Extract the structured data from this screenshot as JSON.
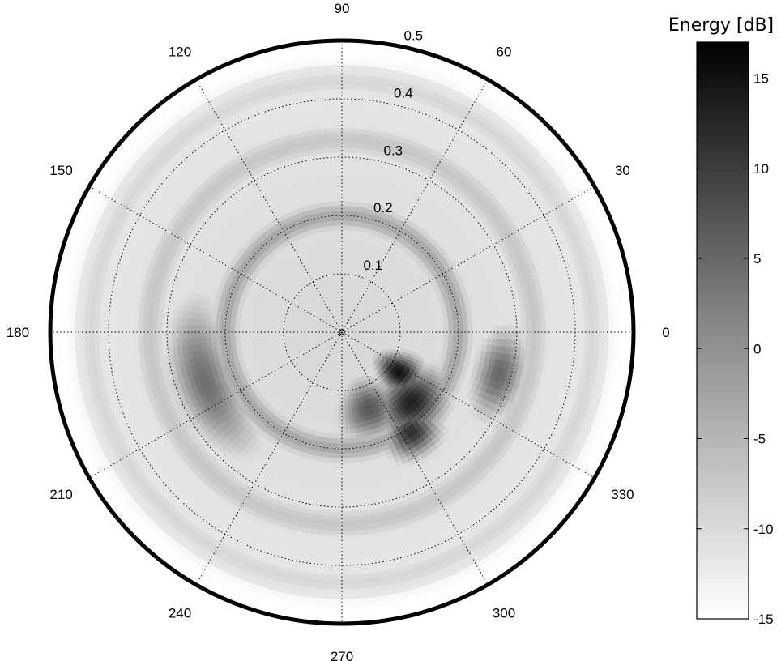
{
  "chart_data": {
    "type": "heatmap",
    "subtype": "polar",
    "title": "",
    "colormap": "gray-reversed",
    "angular_ticks_deg": [
      0,
      30,
      60,
      90,
      120,
      150,
      180,
      210,
      240,
      270,
      300,
      330
    ],
    "angular_tick_labels": [
      "0",
      "30",
      "60",
      "90",
      "120",
      "150",
      "180",
      "210",
      "240",
      "270",
      "300",
      "330"
    ],
    "radial_ticks": [
      0.1,
      0.2,
      0.3,
      0.4,
      0.5
    ],
    "radial_tick_labels": [
      "0.1",
      "0.2",
      "0.3",
      "0.4",
      "0.5"
    ],
    "rlim": [
      0,
      0.5
    ],
    "grid": "dotted",
    "colorbar": {
      "title": "Energy [dB]",
      "ticks": [
        15,
        10,
        5,
        0,
        -5,
        -10,
        -15
      ],
      "tick_labels": [
        "15",
        "10",
        "5",
        "0",
        "-5",
        "-10",
        "-15"
      ],
      "range": [
        -15,
        17
      ]
    },
    "features": [
      {
        "kind": "ring",
        "radius": 0.33,
        "width": 0.06,
        "value_db": -8,
        "theta_start": 0,
        "theta_end": 360
      },
      {
        "kind": "ring",
        "radius": 0.2,
        "width": 0.05,
        "value_db": -4,
        "theta_start": 0,
        "theta_end": 360
      },
      {
        "kind": "ring",
        "radius": 0.43,
        "width": 0.05,
        "value_db": -10,
        "theta_start": 0,
        "theta_end": 360
      },
      {
        "kind": "blob",
        "r": 0.25,
        "theta": 200,
        "spread_r": 0.05,
        "spread_theta": 30,
        "value_db": 3
      },
      {
        "kind": "blob",
        "r": 0.12,
        "theta": 325,
        "spread_r": 0.04,
        "spread_theta": 15,
        "value_db": 15
      },
      {
        "kind": "blob",
        "r": 0.17,
        "theta": 315,
        "spread_r": 0.05,
        "spread_theta": 20,
        "value_db": 13
      },
      {
        "kind": "blob",
        "r": 0.21,
        "theta": 305,
        "spread_r": 0.04,
        "spread_theta": 12,
        "value_db": 11
      },
      {
        "kind": "blob",
        "r": 0.14,
        "theta": 290,
        "spread_r": 0.05,
        "spread_theta": 20,
        "value_db": 6
      },
      {
        "kind": "blob",
        "r": 0.28,
        "theta": 345,
        "spread_r": 0.04,
        "spread_theta": 15,
        "value_db": 4
      },
      {
        "kind": "blob",
        "r": 0.05,
        "theta": 80,
        "spread_r": 0.05,
        "spread_theta": 60,
        "value_db": -13
      }
    ]
  }
}
